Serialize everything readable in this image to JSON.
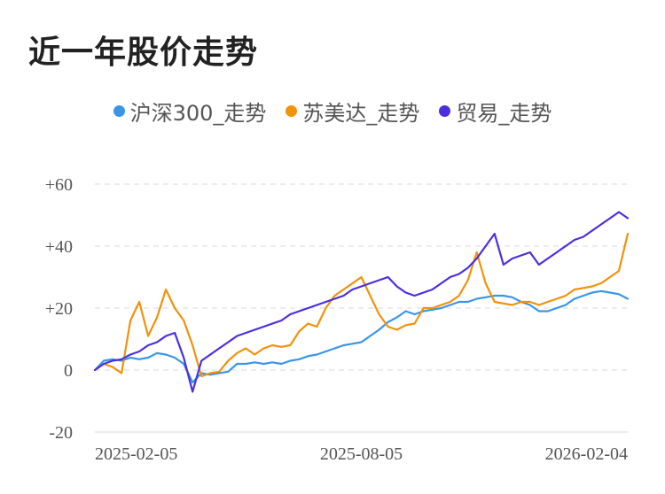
{
  "title": "近一年股价走势",
  "chart_data": {
    "type": "line",
    "title": "近一年股价走势",
    "xlabel": "",
    "ylabel": "",
    "ylim": [
      -20,
      60
    ],
    "y_ticks": [
      {
        "value": 60,
        "label": "+60"
      },
      {
        "value": 40,
        "label": "+40"
      },
      {
        "value": 20,
        "label": "+20"
      },
      {
        "value": 0,
        "label": "0"
      },
      {
        "value": -20,
        "label": "-20"
      }
    ],
    "x_tick_labels": [
      {
        "index": 0,
        "label": "2025-02-05"
      },
      {
        "index": 30,
        "label": "2025-08-05"
      },
      {
        "index": 60,
        "label": "2026-02-04"
      }
    ],
    "series": [
      {
        "name": "沪深300_走势",
        "color": "#3a95e8",
        "values": [
          0,
          3,
          3.5,
          3,
          4,
          3.5,
          4,
          5.5,
          5,
          4,
          2,
          -4,
          -1,
          -1.5,
          -1,
          -0.5,
          2,
          2,
          2.5,
          2,
          2.5,
          2,
          3,
          3.5,
          4.5,
          5,
          6,
          7,
          8,
          8.5,
          9,
          11,
          13,
          15.5,
          17,
          19,
          18,
          19,
          19.5,
          20,
          21,
          22,
          22,
          23,
          23.5,
          24,
          24,
          23.5,
          22,
          21,
          19,
          19,
          20,
          21,
          23,
          24,
          25,
          25.5,
          25,
          24.5,
          23
        ]
      },
      {
        "name": "苏美达_走势",
        "color": "#f0920a",
        "values": [
          0,
          2,
          1,
          -1,
          16,
          22,
          11,
          17,
          26,
          20,
          16,
          8,
          -2,
          -1,
          -0.5,
          3,
          5.5,
          7,
          5,
          7,
          8,
          7.5,
          8,
          12.5,
          15,
          14,
          20,
          24,
          26,
          28,
          30,
          24,
          18,
          14,
          13,
          14.5,
          15,
          20,
          20,
          21,
          22,
          24,
          29,
          38,
          28,
          22,
          21.5,
          21,
          22,
          22,
          21,
          22,
          23,
          24,
          26,
          26.5,
          27,
          28,
          30,
          32,
          44
        ]
      },
      {
        "name": "贸易_走势",
        "color": "#4b2ee0",
        "values": [
          0,
          2,
          3,
          3.5,
          5,
          6,
          8,
          9,
          11,
          12,
          4,
          -7,
          3,
          5,
          7,
          9,
          11,
          12,
          13,
          14,
          15,
          16,
          18,
          19,
          20,
          21,
          22,
          23,
          24,
          26,
          27,
          28,
          29,
          30,
          27,
          25,
          24,
          25,
          26,
          28,
          30,
          31,
          33,
          36,
          40,
          44,
          34,
          36,
          37,
          38,
          34,
          36,
          38,
          40,
          42,
          43,
          45,
          47,
          49,
          51,
          49
        ]
      }
    ]
  }
}
